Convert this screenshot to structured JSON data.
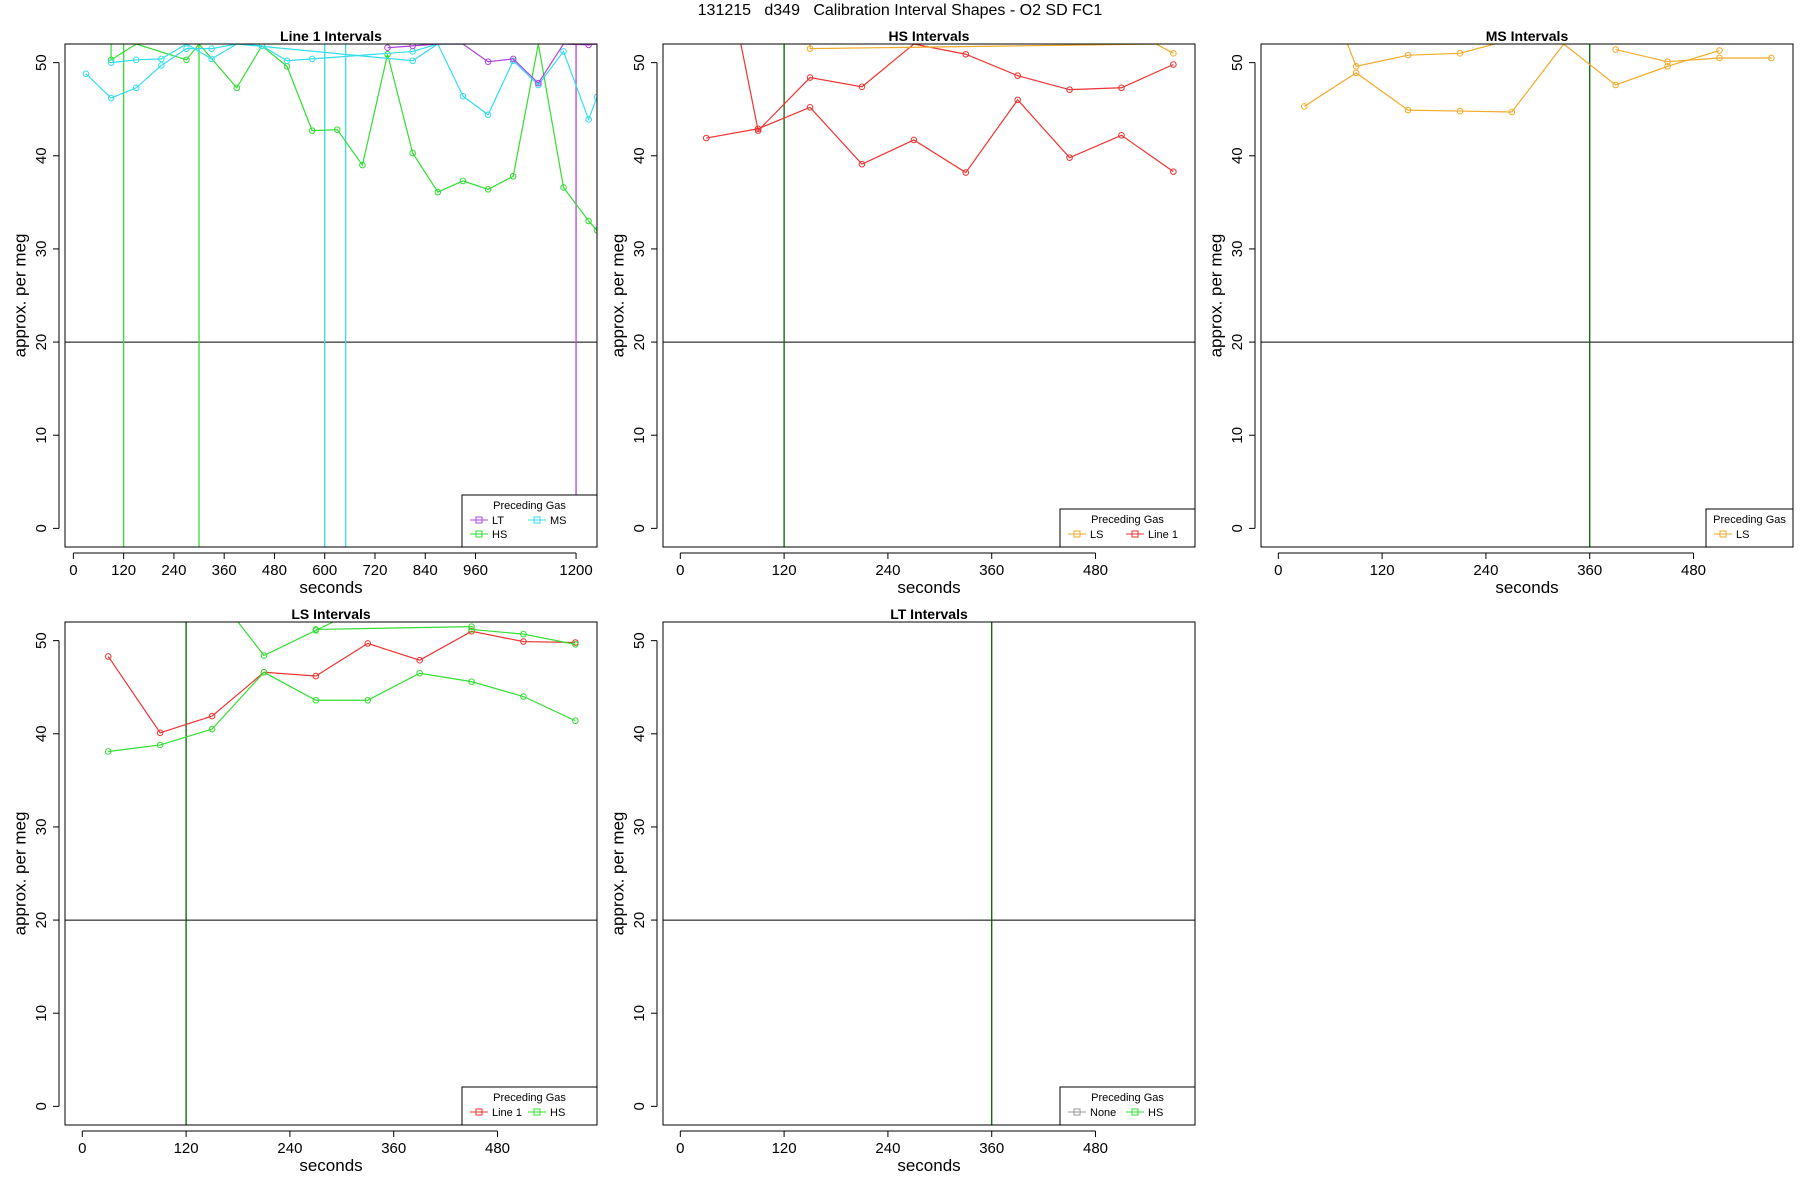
{
  "figure_title": "131215   d349   Calibration Interval Shapes - O2 SD FC1",
  "colors": {
    "LT": "#b044e0",
    "HS": "#33dd33",
    "MS": "#33ddee",
    "LS": "#f2aa2a",
    "Line 1": "#ee3333",
    "None": "#999999",
    "vline_dark": "#006400",
    "hline": "#000000",
    "axis": "#000000"
  },
  "chart_data": [
    {
      "type": "line",
      "title": "Line 1 Intervals",
      "xlabel": "seconds",
      "ylabel": "approx. per meg",
      "xlim": [
        -20,
        1250
      ],
      "ylim": [
        -2,
        52
      ],
      "xticks": [
        0,
        120,
        240,
        360,
        480,
        600,
        720,
        840,
        960,
        1200
      ],
      "yticks": [
        0,
        10,
        20,
        30,
        40,
        50
      ],
      "hline": 20,
      "vlines": [
        {
          "x": 120,
          "color": "HS"
        },
        {
          "x": 300,
          "color": "HS"
        },
        {
          "x": 600,
          "color": "MS"
        },
        {
          "x": 650,
          "color": "MS"
        },
        {
          "x": 1200,
          "color": "LT"
        }
      ],
      "legend": {
        "title": "Preceding Gas",
        "position": "bottom-right",
        "entries": [
          "LT",
          "MS",
          "HS"
        ],
        "columns": 2
      },
      "series": [
        {
          "name": "HS",
          "color": "HS",
          "x": [
            90,
            90,
            150,
            270,
            300,
            390,
            450,
            510,
            570,
            630,
            690,
            750,
            810,
            870,
            930,
            990,
            1050,
            1110,
            1170,
            1230,
            1250
          ],
          "y": [
            52,
            50.3,
            52,
            50.3,
            52,
            47.3,
            51.8,
            49.6,
            42.7,
            42.8,
            39.0,
            50.9,
            40.3,
            36.1,
            37.3,
            36.4,
            37.8,
            52,
            36.6,
            33.0,
            32.0
          ]
        },
        {
          "name": "MS",
          "color": "MS",
          "x": [
            30,
            90,
            150,
            210,
            270,
            330,
            390,
            450,
            510,
            570,
            810,
            870,
            930,
            990,
            1050,
            1110,
            1170,
            1230,
            1250
          ],
          "y": [
            48.8,
            46.2,
            47.3,
            49.7,
            51.5,
            51.5,
            52,
            51.8,
            50.2,
            50.4,
            51.2,
            52,
            46.4,
            44.4,
            50.2,
            47.6,
            51.2,
            43.9,
            46.3
          ]
        },
        {
          "name": "MS",
          "color": "MS",
          "x": [
            90,
            150,
            210,
            270,
            330,
            390,
            810,
            870,
            930
          ],
          "y": [
            50.0,
            50.3,
            50.4,
            52,
            50.4,
            52,
            50.2,
            52,
            52
          ]
        },
        {
          "name": "LT",
          "color": "LT",
          "x": [
            750,
            810,
            870,
            930,
            990,
            1050,
            1110,
            1170,
            1230,
            1250
          ],
          "y": [
            51.6,
            51.8,
            52,
            52,
            50.1,
            50.4,
            47.8,
            52,
            51.9,
            52
          ]
        }
      ]
    },
    {
      "type": "line",
      "title": "HS Intervals",
      "xlabel": "seconds",
      "ylabel": "approx. per meg",
      "xlim": [
        -20,
        595
      ],
      "ylim": [
        -2,
        52
      ],
      "xticks": [
        0,
        120,
        240,
        360,
        480
      ],
      "yticks": [
        0,
        10,
        20,
        30,
        40,
        50
      ],
      "hline": 20,
      "vlines": [
        {
          "x": 120,
          "color": "vline_dark"
        }
      ],
      "legend": {
        "title": "Preceding Gas",
        "position": "bottom-right",
        "entries": [
          "LS",
          "Line 1"
        ],
        "columns": 2
      },
      "series": [
        {
          "name": "Line 1",
          "color": "Line 1",
          "x": [
            30,
            90,
            150,
            210,
            270,
            330,
            390,
            450,
            510,
            570
          ],
          "y": [
            41.9,
            42.9,
            45.2,
            39.1,
            41.7,
            38.2,
            46.0,
            39.8,
            42.2,
            38.3
          ]
        },
        {
          "name": "Line 1",
          "color": "Line 1",
          "x": [
            70,
            90,
            150,
            210,
            270,
            330,
            390,
            450,
            510,
            570
          ],
          "y": [
            52,
            42.7,
            48.4,
            47.4,
            52,
            50.9,
            48.6,
            47.1,
            47.3,
            49.8
          ]
        },
        {
          "name": "LS",
          "color": "LS",
          "x": [
            150,
            150,
            550,
            570
          ],
          "y": [
            52,
            51.5,
            52,
            51.0
          ]
        }
      ]
    },
    {
      "type": "line",
      "title": "MS Intervals",
      "xlabel": "seconds",
      "ylabel": "approx. per meg",
      "xlim": [
        -20,
        595
      ],
      "ylim": [
        -2,
        52
      ],
      "xticks": [
        0,
        120,
        240,
        360,
        480
      ],
      "yticks": [
        0,
        10,
        20,
        30,
        40,
        50
      ],
      "hline": 20,
      "vlines": [
        {
          "x": 360,
          "color": "vline_dark"
        }
      ],
      "legend": {
        "title": "Preceding Gas",
        "position": "bottom-right",
        "entries": [
          "LS"
        ],
        "columns": 1
      },
      "series": [
        {
          "name": "LS",
          "color": "LS",
          "x": [
            30,
            90,
            150,
            210,
            270,
            330,
            390,
            450,
            510
          ],
          "y": [
            45.3,
            48.9,
            44.9,
            44.8,
            44.7,
            52,
            47.6,
            49.6,
            51.3
          ]
        },
        {
          "name": "LS",
          "color": "LS",
          "x": [
            80,
            90,
            150,
            210,
            250
          ],
          "y": [
            52,
            49.6,
            50.8,
            51.0,
            52
          ]
        },
        {
          "name": "LS",
          "color": "LS",
          "x": [
            390,
            450,
            510,
            570
          ],
          "y": [
            51.4,
            50.1,
            50.5,
            50.5
          ]
        }
      ]
    },
    {
      "type": "line",
      "title": "LS Intervals",
      "xlabel": "seconds",
      "ylabel": "approx. per meg",
      "xlim": [
        -20,
        595
      ],
      "ylim": [
        -2,
        52
      ],
      "xticks": [
        0,
        120,
        240,
        360,
        480
      ],
      "yticks": [
        0,
        10,
        20,
        30,
        40,
        50
      ],
      "hline": 20,
      "vlines": [
        {
          "x": 120,
          "color": "vline_dark"
        }
      ],
      "legend": {
        "title": "Preceding Gas",
        "position": "bottom-right",
        "entries": [
          "Line 1",
          "HS"
        ],
        "columns": 2
      },
      "series": [
        {
          "name": "Line 1",
          "color": "Line 1",
          "x": [
            30,
            90,
            150,
            210,
            270,
            330,
            390,
            450,
            510,
            570
          ],
          "y": [
            48.3,
            40.1,
            41.9,
            46.6,
            46.2,
            49.7,
            47.9,
            51.0,
            49.9,
            49.8
          ]
        },
        {
          "name": "HS",
          "color": "HS",
          "x": [
            30,
            90,
            150,
            210,
            270,
            330,
            390,
            450,
            510,
            570
          ],
          "y": [
            38.1,
            38.8,
            40.5,
            46.6,
            43.6,
            43.6,
            46.5,
            45.6,
            44.0,
            41.4
          ]
        },
        {
          "name": "HS",
          "color": "HS",
          "x": [
            180,
            210,
            270,
            290
          ],
          "y": [
            52,
            48.4,
            51.1,
            52
          ]
        },
        {
          "name": "HS",
          "color": "HS",
          "x": [
            450,
            510,
            570
          ],
          "y": [
            51.2,
            50.7,
            49.6
          ]
        },
        {
          "name": "HS",
          "color": "HS",
          "x": [
            270,
            450
          ],
          "y": [
            51.2,
            51.5
          ]
        }
      ]
    },
    {
      "type": "line",
      "title": "LT Intervals",
      "xlabel": "seconds",
      "ylabel": "approx. per meg",
      "xlim": [
        -20,
        595
      ],
      "ylim": [
        -2,
        52
      ],
      "xticks": [
        0,
        120,
        240,
        360,
        480
      ],
      "yticks": [
        0,
        10,
        20,
        30,
        40,
        50
      ],
      "hline": 20,
      "vlines": [
        {
          "x": 360,
          "color": "vline_dark"
        }
      ],
      "legend": {
        "title": "Preceding Gas",
        "position": "bottom-right",
        "entries": [
          "None",
          "HS"
        ],
        "columns": 2
      },
      "series": []
    }
  ]
}
